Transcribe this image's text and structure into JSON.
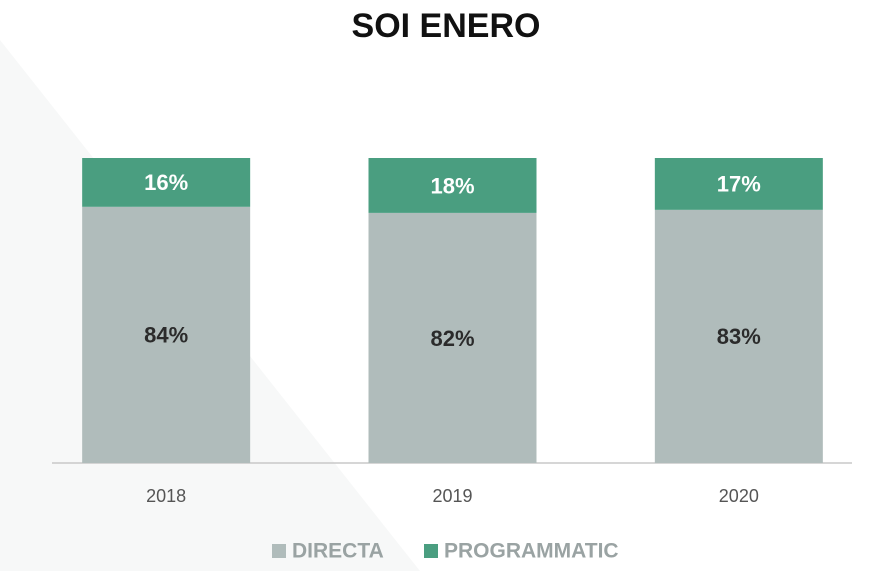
{
  "chart_data": {
    "type": "stacked_bar",
    "title": "SOI ENERO",
    "categories": [
      "2018",
      "2019",
      "2020"
    ],
    "series": [
      {
        "name": "DIRECTA",
        "color": "#b0bcbb",
        "values": [
          84,
          82,
          83
        ],
        "value_labels": [
          "84%",
          "82%",
          "83%"
        ]
      },
      {
        "name": "PROGRAMMATIC",
        "color": "#4a9e80",
        "values": [
          16,
          18,
          17
        ],
        "value_labels": [
          "16%",
          "18%",
          "17%"
        ]
      }
    ],
    "ylim": [
      0,
      100
    ],
    "legend": "bottom"
  }
}
